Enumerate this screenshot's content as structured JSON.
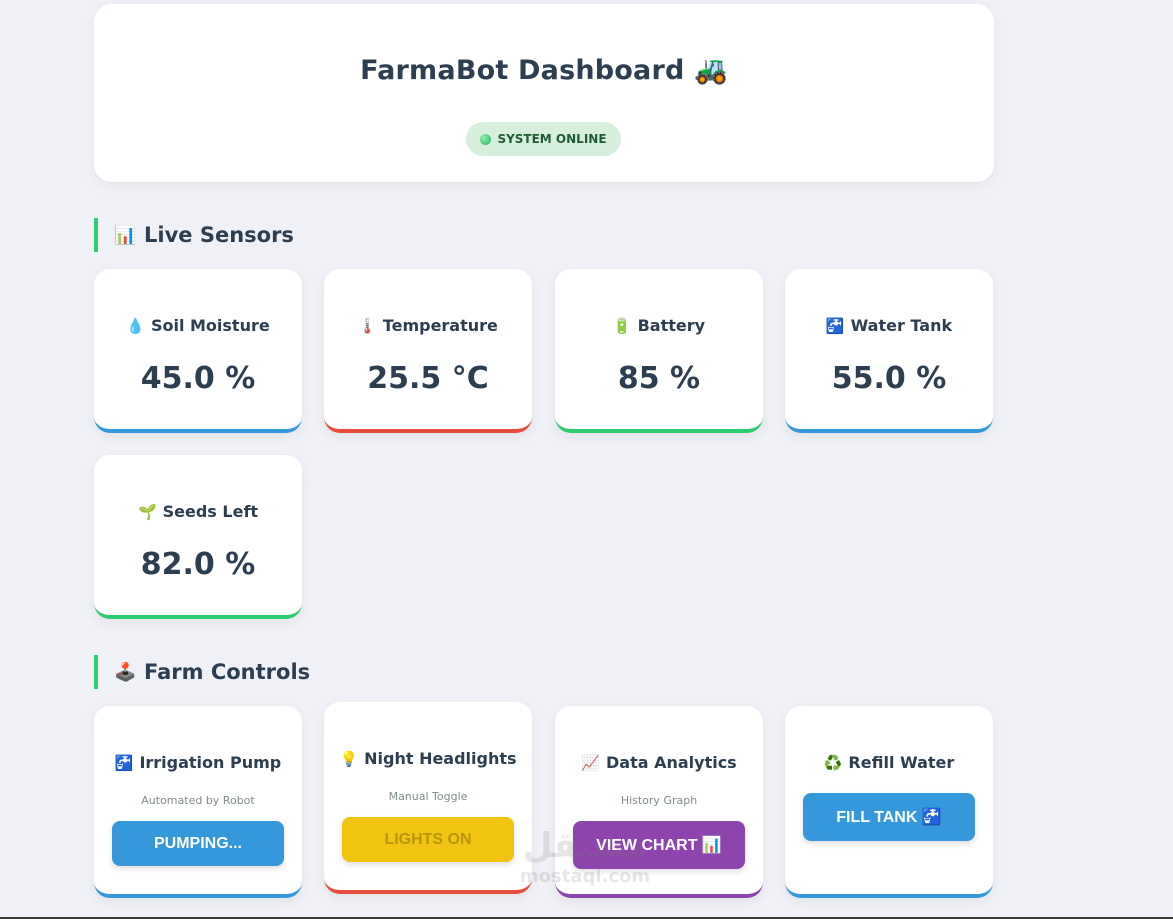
{
  "header": {
    "title": "FarmaBot Dashboard 🚜",
    "status": "SYSTEM ONLINE"
  },
  "sensors_section": {
    "icon": "📊",
    "title": "Live Sensors"
  },
  "sensors": [
    {
      "icon": "💧",
      "label": "Soil Moisture",
      "value": "45.0 %",
      "accent": "#3498db"
    },
    {
      "icon": "🌡️",
      "label": "Temperature",
      "value": "25.5 °C",
      "accent": "#e74c3c"
    },
    {
      "icon": "🔋",
      "label": "Battery",
      "value": "85 %",
      "accent": "#2ecc71"
    },
    {
      "icon": "🚰",
      "label": "Water Tank",
      "value": "55.0 %",
      "accent": "#3498db"
    },
    {
      "icon": "🌱",
      "label": "Seeds Left",
      "value": "82.0 %",
      "accent": "#2ecc71"
    }
  ],
  "controls_section": {
    "icon": "🕹️",
    "title": "Farm Controls"
  },
  "controls": [
    {
      "icon": "🚰",
      "label": "Irrigation Pump",
      "sub": "Automated by Robot",
      "button": "PUMPING...",
      "accent": "#3498db"
    },
    {
      "icon": "💡",
      "label": "Night Headlights",
      "sub": "Manual Toggle",
      "button": "LIGHTS ON",
      "accent": "#e74c3c"
    },
    {
      "icon": "📈",
      "label": "Data Analytics",
      "sub": "History Graph",
      "button": "VIEW CHART 📊",
      "accent": "#8e44ad"
    },
    {
      "icon": "♻️",
      "label": "Refill Water",
      "sub": "",
      "button": "FILL TANK 🚰",
      "accent": "#3498db"
    }
  ],
  "watermark": {
    "logo": "مستقل",
    "url": "mostaql.com"
  }
}
